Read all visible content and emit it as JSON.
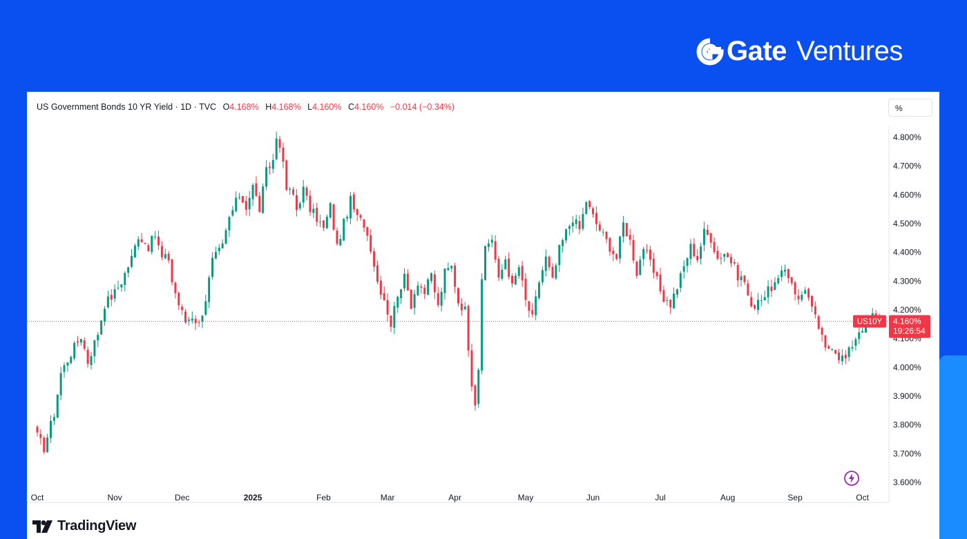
{
  "brand": {
    "name_bold": "Gate",
    "name_light": "Ventures",
    "icon": "gate-logo-icon"
  },
  "legend": {
    "symbol": "US Government Bonds 10 YR Yield · 1D · TVC",
    "o_label": "O",
    "o_value": "4.168%",
    "h_label": "H",
    "h_value": "4.168%",
    "l_label": "L",
    "l_value": "4.160%",
    "c_label": "C",
    "c_value": "4.160%",
    "change": "−0.014 (−0.34%)"
  },
  "scale_button": "%",
  "price_tag": {
    "symbol": "US10Y",
    "price": "4.160%",
    "countdown": "19:26:54"
  },
  "footer": {
    "brand": "TradingView",
    "icon": "tradingview-logo-icon"
  },
  "colors": {
    "up": "#089981",
    "down": "#f23645",
    "brand_bg": "#0a4ff0"
  },
  "chart_data": {
    "type": "candlestick",
    "title": "US Government Bonds 10 YR Yield · 1D · TVC",
    "ylim": [
      3.58,
      4.83
    ],
    "y_ticks": [
      4.8,
      4.7,
      4.6,
      4.5,
      4.4,
      4.3,
      4.2,
      4.1,
      4.0,
      3.9,
      3.8,
      3.7,
      3.6
    ],
    "y_tick_labels": [
      "4.800%",
      "4.700%",
      "4.600%",
      "4.500%",
      "4.400%",
      "4.300%",
      "4.200%",
      "4.100%",
      "4.000%",
      "3.900%",
      "3.800%",
      "3.700%",
      "3.600%"
    ],
    "x_ticks": [
      {
        "label": "Oct",
        "index": 0,
        "bold": false
      },
      {
        "label": "Nov",
        "index": 23,
        "bold": false
      },
      {
        "label": "Dec",
        "index": 43,
        "bold": false
      },
      {
        "label": "2025",
        "index": 64,
        "bold": true
      },
      {
        "label": "Feb",
        "index": 85,
        "bold": false
      },
      {
        "label": "Mar",
        "index": 104,
        "bold": false
      },
      {
        "label": "Apr",
        "index": 124,
        "bold": false
      },
      {
        "label": "May",
        "index": 145,
        "bold": false
      },
      {
        "label": "Jun",
        "index": 165,
        "bold": false
      },
      {
        "label": "Jul",
        "index": 185,
        "bold": false
      },
      {
        "label": "Aug",
        "index": 205,
        "bold": false
      },
      {
        "label": "Sep",
        "index": 225,
        "bold": false
      },
      {
        "label": "Oct",
        "index": 245,
        "bold": false
      }
    ],
    "last_price": 4.16,
    "anchors": [
      [
        0,
        3.76
      ],
      [
        2,
        3.72
      ],
      [
        5,
        3.84
      ],
      [
        7,
        3.98
      ],
      [
        10,
        4.05
      ],
      [
        13,
        4.11
      ],
      [
        15,
        4.02
      ],
      [
        18,
        4.12
      ],
      [
        20,
        4.22
      ],
      [
        23,
        4.26
      ],
      [
        25,
        4.3
      ],
      [
        28,
        4.38
      ],
      [
        30,
        4.46
      ],
      [
        33,
        4.42
      ],
      [
        35,
        4.46
      ],
      [
        37,
        4.38
      ],
      [
        39,
        4.38
      ],
      [
        40,
        4.3
      ],
      [
        42,
        4.22
      ],
      [
        44,
        4.16
      ],
      [
        46,
        4.18
      ],
      [
        48,
        4.15
      ],
      [
        50,
        4.24
      ],
      [
        52,
        4.37
      ],
      [
        55,
        4.42
      ],
      [
        57,
        4.52
      ],
      [
        60,
        4.6
      ],
      [
        62,
        4.56
      ],
      [
        64,
        4.63
      ],
      [
        66,
        4.55
      ],
      [
        68,
        4.68
      ],
      [
        70,
        4.72
      ],
      [
        71,
        4.8
      ],
      [
        72,
        4.78
      ],
      [
        74,
        4.62
      ],
      [
        76,
        4.6
      ],
      [
        77,
        4.55
      ],
      [
        79,
        4.62
      ],
      [
        81,
        4.55
      ],
      [
        83,
        4.52
      ],
      [
        85,
        4.48
      ],
      [
        87,
        4.56
      ],
      [
        89,
        4.42
      ],
      [
        91,
        4.5
      ],
      [
        93,
        4.58
      ],
      [
        95,
        4.52
      ],
      [
        97,
        4.5
      ],
      [
        99,
        4.42
      ],
      [
        101,
        4.3
      ],
      [
        103,
        4.24
      ],
      [
        105,
        4.15
      ],
      [
        107,
        4.26
      ],
      [
        109,
        4.31
      ],
      [
        111,
        4.22
      ],
      [
        113,
        4.3
      ],
      [
        115,
        4.26
      ],
      [
        117,
        4.32
      ],
      [
        119,
        4.21
      ],
      [
        121,
        4.33
      ],
      [
        123,
        4.35
      ],
      [
        125,
        4.23
      ],
      [
        127,
        4.2
      ],
      [
        129,
        3.95
      ],
      [
        130,
        3.88
      ],
      [
        131,
        4.0
      ],
      [
        132,
        4.29
      ],
      [
        133,
        4.42
      ],
      [
        135,
        4.45
      ],
      [
        137,
        4.3
      ],
      [
        139,
        4.38
      ],
      [
        141,
        4.28
      ],
      [
        143,
        4.35
      ],
      [
        145,
        4.23
      ],
      [
        147,
        4.17
      ],
      [
        149,
        4.3
      ],
      [
        151,
        4.38
      ],
      [
        153,
        4.3
      ],
      [
        155,
        4.41
      ],
      [
        157,
        4.47
      ],
      [
        159,
        4.52
      ],
      [
        161,
        4.48
      ],
      [
        163,
        4.58
      ],
      [
        164,
        4.55
      ],
      [
        166,
        4.5
      ],
      [
        168,
        4.46
      ],
      [
        170,
        4.42
      ],
      [
        172,
        4.38
      ],
      [
        174,
        4.5
      ],
      [
        176,
        4.44
      ],
      [
        178,
        4.33
      ],
      [
        180,
        4.42
      ],
      [
        182,
        4.36
      ],
      [
        184,
        4.3
      ],
      [
        186,
        4.24
      ],
      [
        188,
        4.22
      ],
      [
        190,
        4.28
      ],
      [
        192,
        4.35
      ],
      [
        194,
        4.42
      ],
      [
        196,
        4.38
      ],
      [
        198,
        4.47
      ],
      [
        200,
        4.45
      ],
      [
        202,
        4.38
      ],
      [
        204,
        4.4
      ],
      [
        206,
        4.37
      ],
      [
        208,
        4.32
      ],
      [
        210,
        4.3
      ],
      [
        212,
        4.2
      ],
      [
        214,
        4.24
      ],
      [
        216,
        4.25
      ],
      [
        218,
        4.28
      ],
      [
        220,
        4.3
      ],
      [
        222,
        4.34
      ],
      [
        224,
        4.3
      ],
      [
        226,
        4.23
      ],
      [
        228,
        4.28
      ],
      [
        230,
        4.2
      ],
      [
        232,
        4.14
      ],
      [
        234,
        4.06
      ],
      [
        236,
        4.08
      ],
      [
        238,
        4.04
      ],
      [
        240,
        4.03
      ],
      [
        242,
        4.08
      ],
      [
        244,
        4.13
      ],
      [
        246,
        4.15
      ],
      [
        248,
        4.18
      ],
      [
        249,
        4.168
      ],
      [
        250,
        4.16
      ]
    ]
  }
}
